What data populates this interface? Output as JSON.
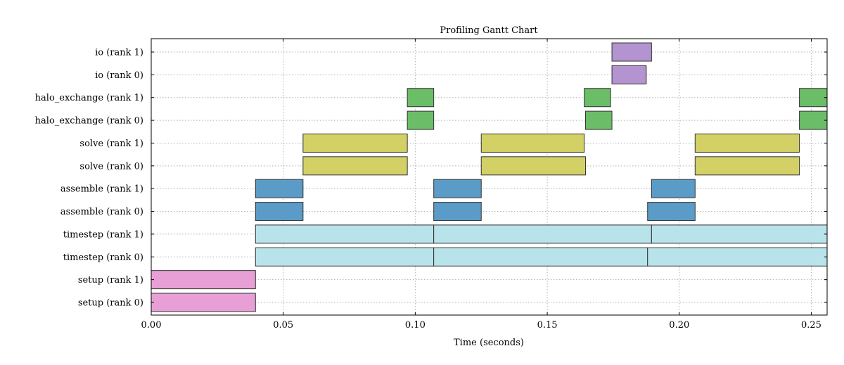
{
  "chart_data": {
    "type": "gantt",
    "title": "Profiling Gantt Chart",
    "xlabel": "Time (seconds)",
    "ylabel": "",
    "xlim": [
      0,
      0.256
    ],
    "xticks": [
      0.0,
      0.05,
      0.1,
      0.15,
      0.2,
      0.25
    ],
    "xtick_labels": [
      "0.00",
      "0.05",
      "0.10",
      "0.15",
      "0.20",
      "0.25"
    ],
    "grid": true,
    "categories": [
      "setup (rank 0)",
      "setup (rank 1)",
      "timestep (rank 0)",
      "timestep (rank 1)",
      "assemble (rank 0)",
      "assemble (rank 1)",
      "solve (rank 0)",
      "solve (rank 1)",
      "halo_exchange (rank 0)",
      "halo_exchange (rank 1)",
      "io (rank 0)",
      "io (rank 1)"
    ],
    "colors": {
      "setup": "#e89fd6",
      "timestep": "#b9e3ea",
      "assemble": "#5b9bc8",
      "solve": "#d3d166",
      "halo_exchange": "#6bbd68",
      "io": "#b394d0"
    },
    "edge_color": "#333333",
    "tasks": [
      {
        "row": "setup (rank 0)",
        "kind": "setup",
        "start": 0.0,
        "end": 0.0395
      },
      {
        "row": "setup (rank 1)",
        "kind": "setup",
        "start": 0.0,
        "end": 0.0395
      },
      {
        "row": "timestep (rank 0)",
        "kind": "timestep",
        "start": 0.0395,
        "end": 0.107
      },
      {
        "row": "timestep (rank 0)",
        "kind": "timestep",
        "start": 0.107,
        "end": 0.188
      },
      {
        "row": "timestep (rank 0)",
        "kind": "timestep",
        "start": 0.188,
        "end": 0.256
      },
      {
        "row": "timestep (rank 1)",
        "kind": "timestep",
        "start": 0.0395,
        "end": 0.107
      },
      {
        "row": "timestep (rank 1)",
        "kind": "timestep",
        "start": 0.107,
        "end": 0.1895
      },
      {
        "row": "timestep (rank 1)",
        "kind": "timestep",
        "start": 0.1895,
        "end": 0.256
      },
      {
        "row": "assemble (rank 0)",
        "kind": "assemble",
        "start": 0.0395,
        "end": 0.0575
      },
      {
        "row": "assemble (rank 0)",
        "kind": "assemble",
        "start": 0.107,
        "end": 0.125
      },
      {
        "row": "assemble (rank 0)",
        "kind": "assemble",
        "start": 0.188,
        "end": 0.206
      },
      {
        "row": "assemble (rank 1)",
        "kind": "assemble",
        "start": 0.0395,
        "end": 0.0575
      },
      {
        "row": "assemble (rank 1)",
        "kind": "assemble",
        "start": 0.107,
        "end": 0.125
      },
      {
        "row": "assemble (rank 1)",
        "kind": "assemble",
        "start": 0.1895,
        "end": 0.206
      },
      {
        "row": "solve (rank 0)",
        "kind": "solve",
        "start": 0.0575,
        "end": 0.097
      },
      {
        "row": "solve (rank 0)",
        "kind": "solve",
        "start": 0.125,
        "end": 0.1645
      },
      {
        "row": "solve (rank 0)",
        "kind": "solve",
        "start": 0.206,
        "end": 0.2455
      },
      {
        "row": "solve (rank 1)",
        "kind": "solve",
        "start": 0.0575,
        "end": 0.097
      },
      {
        "row": "solve (rank 1)",
        "kind": "solve",
        "start": 0.125,
        "end": 0.164
      },
      {
        "row": "solve (rank 1)",
        "kind": "solve",
        "start": 0.206,
        "end": 0.2455
      },
      {
        "row": "halo_exchange (rank 0)",
        "kind": "halo_exchange",
        "start": 0.097,
        "end": 0.107
      },
      {
        "row": "halo_exchange (rank 0)",
        "kind": "halo_exchange",
        "start": 0.1645,
        "end": 0.1745
      },
      {
        "row": "halo_exchange (rank 0)",
        "kind": "halo_exchange",
        "start": 0.2455,
        "end": 0.256
      },
      {
        "row": "halo_exchange (rank 1)",
        "kind": "halo_exchange",
        "start": 0.097,
        "end": 0.107
      },
      {
        "row": "halo_exchange (rank 1)",
        "kind": "halo_exchange",
        "start": 0.164,
        "end": 0.174
      },
      {
        "row": "halo_exchange (rank 1)",
        "kind": "halo_exchange",
        "start": 0.2455,
        "end": 0.256
      },
      {
        "row": "io (rank 0)",
        "kind": "io",
        "start": 0.1745,
        "end": 0.1875
      },
      {
        "row": "io (rank 1)",
        "kind": "io",
        "start": 0.1745,
        "end": 0.1895
      }
    ]
  }
}
